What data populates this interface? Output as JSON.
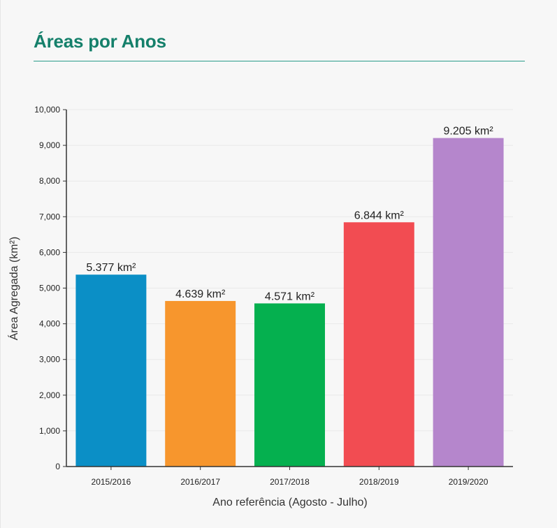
{
  "card": {
    "title": "Áreas por Anos"
  },
  "colors": {
    "title": "#15806b",
    "rule": "#2a9c8a",
    "axis": "#333333",
    "grid": "#e9e9e9"
  },
  "chart_data": {
    "type": "bar",
    "categories": [
      "2015/2016",
      "2016/2017",
      "2017/2018",
      "2018/2019",
      "2019/2020"
    ],
    "values": [
      5377,
      4639,
      4571,
      6844,
      9205
    ],
    "data_labels": [
      "5.377 km²",
      "4.639 km²",
      "4.571 km²",
      "6.844 km²",
      "9.205 km²"
    ],
    "colors": [
      "#0b8fc6",
      "#f7962d",
      "#05b04f",
      "#f24c52",
      "#b586cc"
    ],
    "xlabel": "Ano referência (Agosto - Julho)",
    "ylabel": "Área Agregada (km²)",
    "ylim": [
      0,
      10000
    ],
    "yticks": [
      0,
      1000,
      2000,
      3000,
      4000,
      5000,
      6000,
      7000,
      8000,
      9000,
      10000
    ],
    "ytick_labels": [
      "0",
      "1,000",
      "2,000",
      "3,000",
      "4,000",
      "5,000",
      "6,000",
      "7,000",
      "8,000",
      "9,000",
      "10,000"
    ],
    "grid": true,
    "legend": "none"
  }
}
